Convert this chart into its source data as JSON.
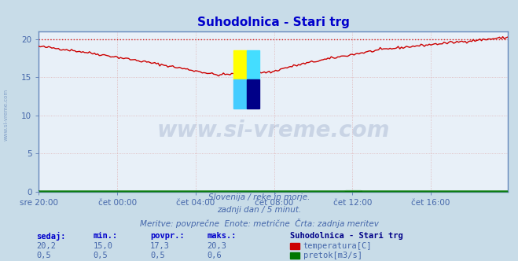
{
  "title": "Suhodolnica - Stari trg",
  "title_color": "#0000cc",
  "bg_color": "#c8dce8",
  "plot_bg_color": "#e8f0f8",
  "grid_color": "#ddaaaa",
  "axis_color": "#6688bb",
  "tick_color": "#4466aa",
  "watermark_text": "www.si-vreme.com",
  "watermark_color": "#1a3a7a",
  "watermark_alpha": 0.15,
  "ylim": [
    0,
    21.0
  ],
  "yticks": [
    0,
    5,
    10,
    15,
    20
  ],
  "xlim": [
    0,
    287
  ],
  "xtick_positions": [
    0,
    48,
    96,
    144,
    192,
    240
  ],
  "xtick_labels": [
    "sre 20:00",
    "čet 00:00",
    "čet 04:00",
    "čet 08:00",
    "čet 12:00",
    "čet 16:00"
  ],
  "temp_color": "#cc0000",
  "flow_color": "#007700",
  "dashed_color": "#cc0000",
  "dashed_value": 20.0,
  "footer_line1": "Slovenija / reke in morje.",
  "footer_line2": "zadnji dan / 5 minut.",
  "footer_line3": "Meritve: povprečne  Enote: metrične  Črta: zadnja meritev",
  "footer_color": "#4466aa",
  "table_header_color": "#0000cc",
  "table_value_color": "#4466aa",
  "table_cols": [
    "sedaj:",
    "min.:",
    "povpr.:",
    "maks.:"
  ],
  "temp_row": [
    "20,2",
    "15,0",
    "17,3",
    "20,3"
  ],
  "flow_row": [
    "0,5",
    "0,5",
    "0,5",
    "0,6"
  ],
  "legend_title": "Suhodolnica - Stari trg",
  "legend_title_color": "#000088",
  "legend_items": [
    "temperatura[C]",
    "pretok[m3/s]"
  ],
  "legend_colors": [
    "#cc0000",
    "#007700"
  ],
  "logo_colors": [
    "#ffff00",
    "#00ccff",
    "#44ddff",
    "#000088"
  ]
}
